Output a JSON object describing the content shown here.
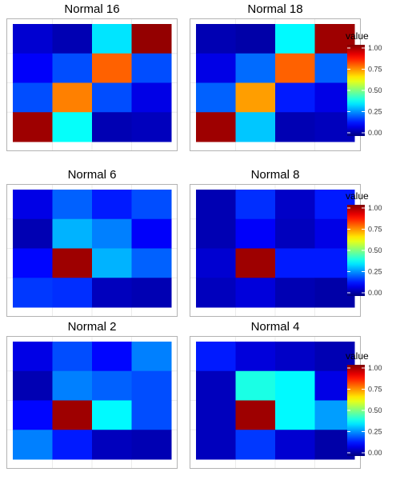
{
  "chart_data": {
    "type": "heatmap",
    "colormap": "jet",
    "clim": [
      0,
      1
    ],
    "grid": true,
    "panels": [
      {
        "title": "Normal 16",
        "values": [
          [
            0.08,
            0.05,
            0.35,
            0.98
          ],
          [
            0.12,
            0.2,
            0.78,
            0.2
          ],
          [
            0.2,
            0.75,
            0.2,
            0.1
          ],
          [
            0.97,
            0.38,
            0.05,
            0.06
          ]
        ]
      },
      {
        "title": "Normal 18",
        "values": [
          [
            0.05,
            0.04,
            0.37,
            0.97
          ],
          [
            0.1,
            0.23,
            0.78,
            0.22
          ],
          [
            0.22,
            0.72,
            0.15,
            0.1
          ],
          [
            0.97,
            0.32,
            0.05,
            0.06
          ]
        ]
      },
      {
        "title": "Normal 6",
        "values": [
          [
            0.1,
            0.22,
            0.15,
            0.2
          ],
          [
            0.05,
            0.3,
            0.25,
            0.12
          ],
          [
            0.13,
            0.97,
            0.3,
            0.22
          ],
          [
            0.18,
            0.17,
            0.06,
            0.05
          ]
        ]
      },
      {
        "title": "Normal 8",
        "values": [
          [
            0.05,
            0.17,
            0.07,
            0.15
          ],
          [
            0.05,
            0.12,
            0.06,
            0.1
          ],
          [
            0.08,
            0.97,
            0.15,
            0.15
          ],
          [
            0.06,
            0.09,
            0.05,
            0.04
          ]
        ]
      },
      {
        "title": "Normal 2",
        "values": [
          [
            0.1,
            0.2,
            0.13,
            0.25
          ],
          [
            0.05,
            0.25,
            0.22,
            0.2
          ],
          [
            0.13,
            0.97,
            0.37,
            0.2
          ],
          [
            0.25,
            0.15,
            0.06,
            0.05
          ]
        ]
      },
      {
        "title": "Normal 4",
        "values": [
          [
            0.15,
            0.09,
            0.07,
            0.05
          ],
          [
            0.06,
            0.4,
            0.37,
            0.1
          ],
          [
            0.06,
            0.97,
            0.37,
            0.28
          ],
          [
            0.06,
            0.18,
            0.08,
            0.04
          ]
        ]
      }
    ],
    "legends": [
      {
        "title": "value",
        "ticks": [
          "1.00",
          "0.75",
          "0.50",
          "0.25",
          "0.00"
        ]
      },
      {
        "title": "value",
        "ticks": [
          "1.00",
          "0.75",
          "0.50",
          "0.25",
          "0.00"
        ]
      },
      {
        "title": "value",
        "ticks": [
          "1.00",
          "0.75",
          "0.50",
          "0.25",
          "0.00"
        ]
      }
    ]
  }
}
